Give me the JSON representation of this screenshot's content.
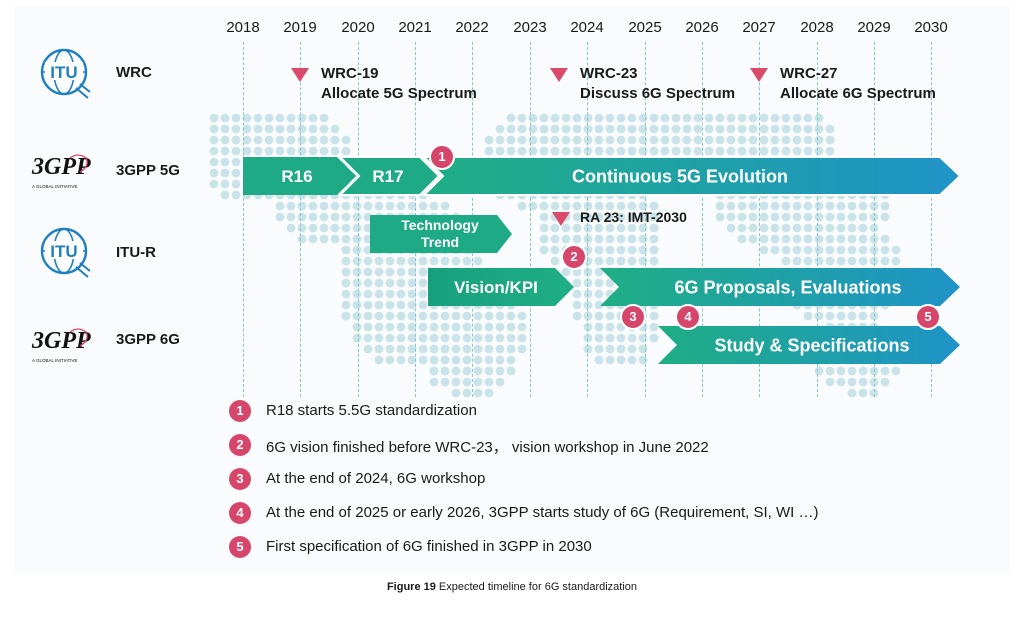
{
  "years": [
    "2018",
    "2019",
    "2020",
    "2021",
    "2022",
    "2023",
    "2024",
    "2025",
    "2026",
    "2027",
    "2028",
    "2029",
    "2030"
  ],
  "rows": [
    {
      "label": "WRC",
      "logo": "itu-logo"
    },
    {
      "label": "3GPP 5G",
      "logo": "3gpp-logo"
    },
    {
      "label": "ITU-R",
      "logo": "itu-logo"
    },
    {
      "label": "3GPP 6G",
      "logo": "3gpp-logo"
    }
  ],
  "logos": {
    "itu": "ITU",
    "gpp_top": "3GPP",
    "gpp_sub": "A GLOBAL INITIATIVE"
  },
  "wrc_events": [
    {
      "line1": "WRC-19",
      "line2": "Allocate 5G Spectrum"
    },
    {
      "line1": "WRC-23",
      "line2": "Discuss 6G Spectrum"
    },
    {
      "line1": "WRC-27",
      "line2": "Allocate 6G Spectrum"
    }
  ],
  "arrows": {
    "r16": "R16",
    "r17": "R17",
    "evolution": "Continuous 5G Evolution",
    "tech_line1": "Technology",
    "tech_line2": "Trend",
    "vision": "Vision/KPI",
    "proposals": "6G Proposals, Evaluations",
    "study": "Study & Specifications"
  },
  "ra23": "RA 23: IMT-2030",
  "badges": [
    "1",
    "2",
    "3",
    "4",
    "5"
  ],
  "notes": [
    {
      "num": "1",
      "text": "R18 starts 5.5G standardization"
    },
    {
      "num": "2",
      "text": "6G vision finished before WRC-23， vision workshop in June 2022"
    },
    {
      "num": "3",
      "text": "At the end of 2024, 6G workshop"
    },
    {
      "num": "4",
      "text": "At the end of 2025 or early 2026, 3GPP starts study of 6G (Requirement, SI, WI …)"
    },
    {
      "num": "5",
      "text": "First specification of 6G finished in 3GPP in 2030"
    }
  ],
  "caption": {
    "label": "Figure 19",
    "text": "Expected timeline for 6G standardization"
  },
  "colors": {
    "arrow_start": "#1fa882",
    "arrow_end": "#1f8fc6",
    "badge": "#d5466a",
    "triangle": "#d94a6b",
    "map_dot": "#c9e3e8"
  }
}
